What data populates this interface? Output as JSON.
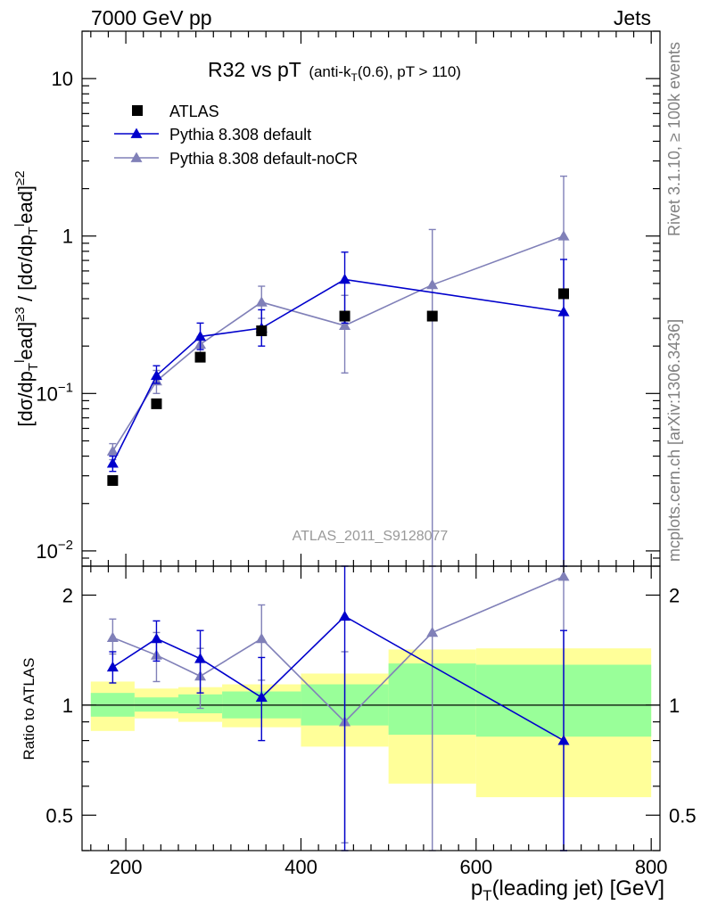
{
  "header": {
    "left": "7000 GeV pp",
    "right": "Jets"
  },
  "title_main": "R32 vs pT",
  "title_sub": "(anti-k_T(0.6), pT > 110)",
  "side_label_top": "Rivet 3.1.10, ≥ 100k events",
  "side_label_bottom": "mcplots.cern.ch [arXiv:1306.3436]",
  "analysis_label": "ATLAS_2011_S9128077",
  "ylabel_top": "[dσ/dp_T^lead]^{≥3} / [dσ/dp_T^lead]^{≥2}",
  "ylabel_ratio": "Ratio to ATLAS",
  "xlabel": "p_T(leading jet) [GeV]",
  "colors": {
    "atlas": "#000000",
    "pythia_default": "#0000cc",
    "pythia_nocr": "#8080b8",
    "band_inner": "#99ff99",
    "band_outer": "#ffff99"
  },
  "chart_data": {
    "type": "line",
    "x_scale": "linear",
    "xlim": [
      150,
      810
    ],
    "x_ticks": [
      200,
      400,
      600,
      800
    ],
    "top_panel": {
      "y_scale": "log",
      "ylim": [
        0.008,
        20
      ],
      "y_ticks": [
        {
          "value": 0.01,
          "label": "10^-2"
        },
        {
          "value": 0.1,
          "label": "10^-1"
        },
        {
          "value": 1,
          "label": "1"
        },
        {
          "value": 10,
          "label": "10"
        }
      ]
    },
    "ratio_panel": {
      "y_scale": "log",
      "ylim": [
        0.4,
        2.4
      ],
      "y_ticks": [
        {
          "value": 0.5,
          "label": "0.5"
        },
        {
          "value": 1,
          "label": "1"
        },
        {
          "value": 2,
          "label": "2"
        }
      ]
    },
    "bins": [
      [
        160,
        210
      ],
      [
        210,
        260
      ],
      [
        260,
        310
      ],
      [
        310,
        400
      ],
      [
        400,
        500
      ],
      [
        500,
        600
      ],
      [
        600,
        800
      ]
    ],
    "x": [
      185,
      235,
      285,
      355,
      450,
      550,
      700
    ],
    "series": [
      {
        "name": "ATLAS",
        "marker": "square",
        "values": [
          0.028,
          0.086,
          0.17,
          0.25,
          0.31,
          0.31,
          0.43
        ]
      },
      {
        "name": "Pythia 8.308 default",
        "marker": "triangle",
        "values": [
          0.036,
          0.13,
          0.23,
          0.26,
          0.53,
          0.0,
          0.33
        ],
        "err_lo": [
          0.032,
          0.116,
          0.19,
          0.2,
          0.28,
          0.0,
          0.005
        ],
        "err_hi": [
          0.04,
          0.15,
          0.28,
          0.34,
          0.79,
          0.0,
          0.71
        ],
        "ratio": [
          1.27,
          1.52,
          1.34,
          1.05,
          1.75,
          0.0,
          0.8
        ],
        "ratio_lo": [
          1.15,
          1.32,
          1.08,
          0.8,
          0.3,
          0.0,
          0.3
        ],
        "ratio_hi": [
          1.4,
          1.7,
          1.6,
          1.35,
          2.5,
          0.0,
          1.6
        ],
        "skip_index": [
          5
        ]
      },
      {
        "name": "Pythia 8.308 default-noCR",
        "marker": "triangle",
        "values": [
          0.043,
          0.12,
          0.205,
          0.38,
          0.27,
          0.49,
          1.0
        ],
        "err_lo": [
          0.038,
          0.1,
          0.18,
          0.3,
          0.135,
          0.005,
          0.005
        ],
        "err_hi": [
          0.048,
          0.14,
          0.23,
          0.48,
          0.42,
          1.1,
          2.4
        ],
        "ratio": [
          1.53,
          1.37,
          1.2,
          1.52,
          0.9,
          1.58,
          2.25
        ],
        "ratio_lo": [
          1.38,
          1.16,
          0.98,
          1.17,
          0.42,
          0.3,
          0.3
        ],
        "ratio_hi": [
          1.72,
          1.58,
          1.43,
          1.88,
          1.4,
          2.5,
          2.5
        ]
      }
    ],
    "ratio_bands": {
      "inner": [
        [
          0.93,
          1.08
        ],
        [
          0.96,
          1.05
        ],
        [
          0.95,
          1.07
        ],
        [
          0.92,
          1.09
        ],
        [
          0.88,
          1.14
        ],
        [
          0.83,
          1.3
        ],
        [
          0.82,
          1.29
        ]
      ],
      "outer": [
        [
          0.85,
          1.16
        ],
        [
          0.92,
          1.11
        ],
        [
          0.9,
          1.12
        ],
        [
          0.87,
          1.14
        ],
        [
          0.77,
          1.22
        ],
        [
          0.61,
          1.42
        ],
        [
          0.56,
          1.43
        ]
      ]
    }
  }
}
